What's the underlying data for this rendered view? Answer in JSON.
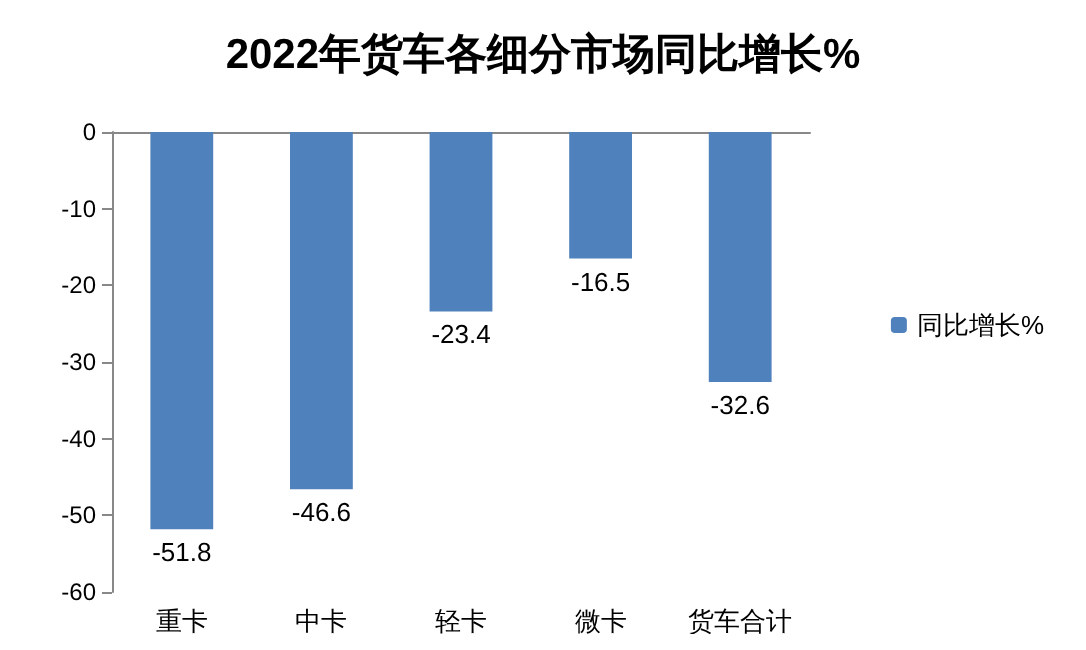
{
  "chart_data": {
    "type": "bar",
    "title": "2022年货车各细分市场同比增长%",
    "categories": [
      "重卡",
      "中卡",
      "轻卡",
      "微卡",
      "货车合计"
    ],
    "series": [
      {
        "name": "同比增长%",
        "color": "#4f81bd",
        "values": [
          -51.8,
          -46.6,
          -23.4,
          -16.5,
          -32.6
        ]
      }
    ],
    "ylim": [
      -60,
      0
    ],
    "yticks": [
      -60,
      -50,
      -40,
      -30,
      -20,
      -10,
      0
    ],
    "grid": false,
    "legend": "right",
    "data_labels": true
  }
}
